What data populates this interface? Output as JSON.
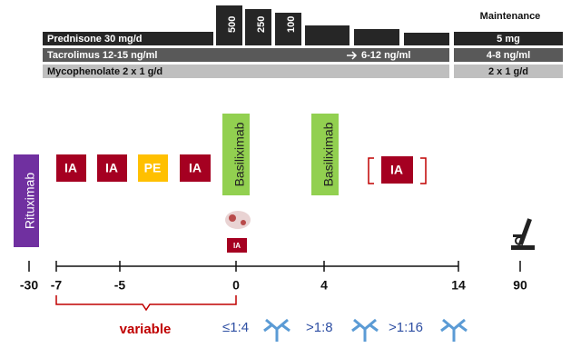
{
  "regimen": {
    "prednisone": {
      "label": "Prednisone 30 mg/d",
      "pulses": [
        "500",
        "250",
        "100"
      ],
      "maintenance": "5 mg"
    },
    "tacrolimus": {
      "label": "Tacrolimus 12-15 ng/ml",
      "later": "6-12 ng/ml",
      "maintenance": "4-8 ng/ml"
    },
    "mycophenolate": {
      "label": "Mycophenolate 2 x 1 g/d",
      "maintenance": "2 x 1 g/d"
    },
    "maintenance_title": "Maintenance"
  },
  "treatments": {
    "rituximab": "Rituximab",
    "basiliximab": [
      "Basiliximab",
      "Basiliximab"
    ],
    "sessions": [
      "IA",
      "IA",
      "PE",
      "IA"
    ],
    "optional_ia": "IA",
    "small_ia": "IA"
  },
  "timeline": {
    "ticks": [
      "-30",
      "-7",
      "-5",
      "0",
      "4",
      "14",
      "90"
    ],
    "variable": "variable",
    "titers": [
      "≤1:4",
      ">1:8",
      ">1:16"
    ]
  }
}
